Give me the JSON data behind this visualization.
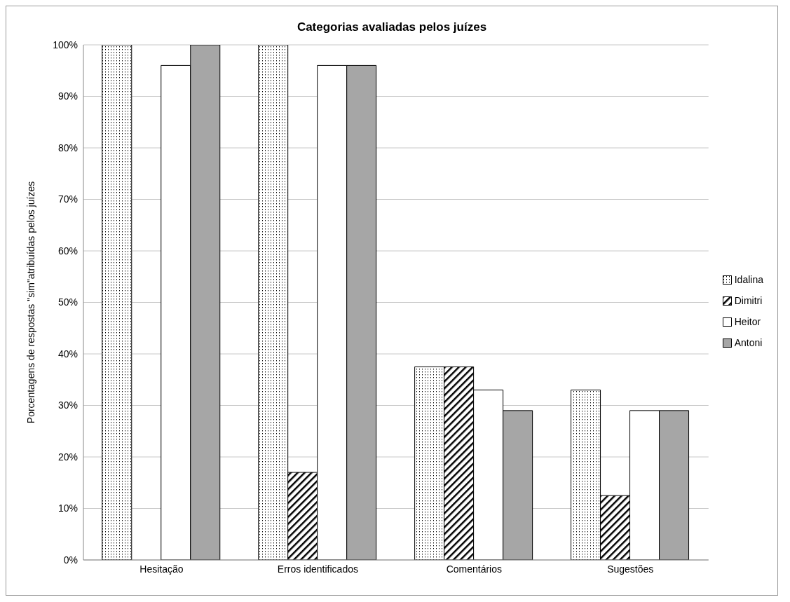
{
  "chart_data": {
    "type": "bar",
    "title": "Categorias avaliadas pelos juízes",
    "ylabel": "Porcentagens de respostas \"sim\"atribuídas pelos juízes",
    "categories": [
      "Hesitação",
      "Erros identificados",
      "Comentários",
      "Sugestões"
    ],
    "series": [
      {
        "name": "Idalina",
        "color": "#000000",
        "values": [
          100,
          100,
          37.5,
          33
        ]
      },
      {
        "name": "Dimitri",
        "color": "#000000",
        "values": [
          0,
          17,
          37.5,
          12.5
        ]
      },
      {
        "name": "Heitor",
        "color": "#ffffff",
        "values": [
          96,
          96,
          33,
          29
        ]
      },
      {
        "name": "Antoni",
        "color": "#a6a6a6",
        "values": [
          100,
          96,
          29,
          29
        ]
      }
    ],
    "ylim": [
      0,
      100
    ],
    "yticks": [
      {
        "value": 0,
        "label": "0%"
      },
      {
        "value": 10,
        "label": "10%"
      },
      {
        "value": 20,
        "label": "20%"
      },
      {
        "value": 30,
        "label": "30%"
      },
      {
        "value": 40,
        "label": "40%"
      },
      {
        "value": 50,
        "label": "50%"
      },
      {
        "value": 60,
        "label": "60%"
      },
      {
        "value": 70,
        "label": "70%"
      },
      {
        "value": 80,
        "label": "80%"
      },
      {
        "value": 90,
        "label": "90%"
      },
      {
        "value": 100,
        "label": "100%"
      }
    ],
    "grid": "y",
    "legend": "right"
  }
}
